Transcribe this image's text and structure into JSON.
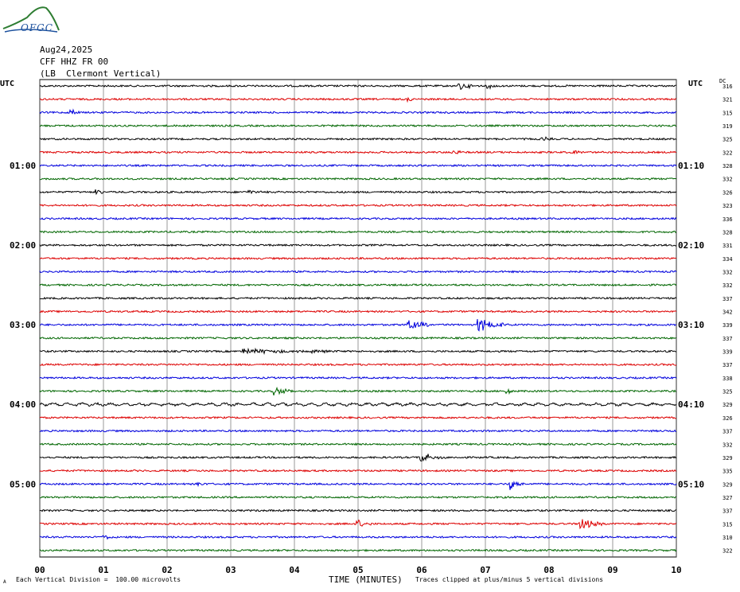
{
  "header": {
    "logo_text": "OFGC",
    "date": "Aug24,2025",
    "station": "CFF HHZ FR 00",
    "location": "(LB  Clermont Vertical)",
    "utc_left": "UTC",
    "utc_right": "UTC",
    "dc_label": "DC"
  },
  "footer": {
    "scale_note": "Each Vertical Division =  100.00 microvolts",
    "xlabel": "TIME (MINUTES)",
    "clip_note": "Traces clipped at plus/minus 5 vertical divisions",
    "corner_mark": "A"
  },
  "colors": {
    "trace_cycle": [
      "#000000",
      "#dd0000",
      "#0000dd",
      "#006600"
    ],
    "grid": "#000000"
  },
  "chart_data": {
    "type": "line",
    "xlim": [
      0,
      10
    ],
    "x_ticks": [
      "00",
      "01",
      "02",
      "03",
      "04",
      "05",
      "06",
      "07",
      "08",
      "09",
      "10"
    ],
    "left_time_labels": [
      "01:00",
      "02:00",
      "03:00",
      "04:00",
      "05:00"
    ],
    "right_time_labels": [
      "01:10",
      "02:10",
      "03:10",
      "04:10",
      "05:10"
    ],
    "time_label_rows": [
      6,
      12,
      18,
      24,
      30
    ],
    "dc_offsets": [
      316,
      321,
      315,
      319,
      325,
      322,
      328,
      332,
      326,
      323,
      336,
      328,
      331,
      334,
      332,
      332,
      337,
      342,
      339,
      337,
      339,
      337,
      338,
      325,
      329,
      326,
      337,
      332,
      329,
      335,
      329,
      327,
      337,
      315,
      310,
      322
    ],
    "events": [
      {
        "row": 0,
        "minute": 6.6,
        "amp": 6,
        "dur": 0.25
      },
      {
        "row": 0,
        "minute": 7.05,
        "amp": 3,
        "dur": 0.15
      },
      {
        "row": 1,
        "minute": 5.8,
        "amp": 2.5,
        "dur": 0.15
      },
      {
        "row": 2,
        "minute": 0.5,
        "amp": 5,
        "dur": 0.15
      },
      {
        "row": 4,
        "minute": 7.9,
        "amp": 2.5,
        "dur": 0.2
      },
      {
        "row": 5,
        "minute": 6.5,
        "amp": 4.5,
        "dur": 0.15
      },
      {
        "row": 5,
        "minute": 8.4,
        "amp": 2.5,
        "dur": 0.15
      },
      {
        "row": 8,
        "minute": 0.9,
        "amp": 3,
        "dur": 0.15
      },
      {
        "row": 8,
        "minute": 3.3,
        "amp": 2,
        "dur": 0.3
      },
      {
        "row": 18,
        "minute": 5.8,
        "amp": 6,
        "dur": 0.5
      },
      {
        "row": 18,
        "minute": 6.9,
        "amp": 8,
        "dur": 0.5
      },
      {
        "row": 20,
        "minute": 3.2,
        "amp": 4,
        "dur": 1.0
      },
      {
        "row": 20,
        "minute": 4.3,
        "amp": 2,
        "dur": 0.4
      },
      {
        "row": 23,
        "minute": 3.7,
        "amp": 5,
        "dur": 0.4
      },
      {
        "row": 23,
        "minute": 7.35,
        "amp": 3,
        "dur": 0.15
      },
      {
        "row": 28,
        "minute": 6.0,
        "amp": 6,
        "dur": 0.4
      },
      {
        "row": 30,
        "minute": 2.5,
        "amp": 3,
        "dur": 0.15
      },
      {
        "row": 30,
        "minute": 7.4,
        "amp": 9,
        "dur": 0.2
      },
      {
        "row": 33,
        "minute": 5.0,
        "amp": 5,
        "dur": 0.25
      },
      {
        "row": 33,
        "minute": 8.5,
        "amp": 7,
        "dur": 0.4
      },
      {
        "row": 34,
        "minute": 1.0,
        "amp": 3,
        "dur": 0.2
      }
    ]
  }
}
